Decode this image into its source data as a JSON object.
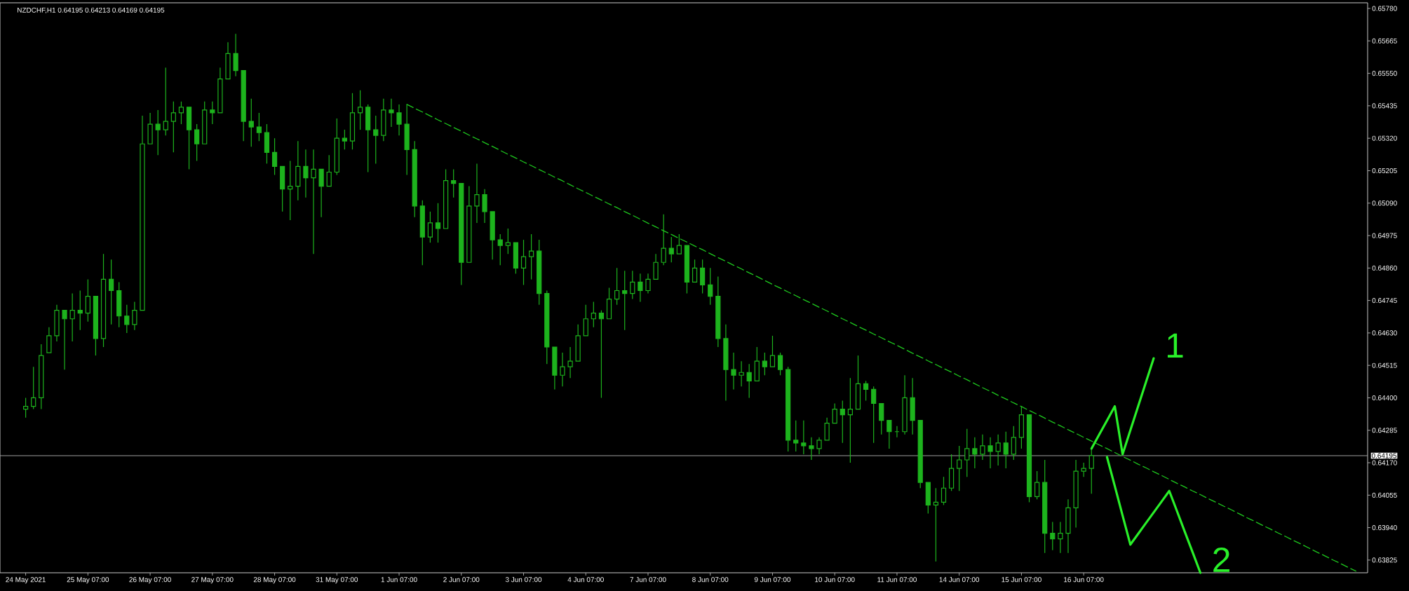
{
  "chart_data": {
    "type": "candlestick",
    "title": "NZDCHF,H1 0.64195 0.64213 0.64169 0.64195",
    "categories": [
      "24 May 2021",
      null,
      null,
      null,
      null,
      null,
      null,
      null,
      "25 May 07:00",
      null,
      null,
      null,
      null,
      null,
      null,
      null,
      "26 May 07:00",
      null,
      null,
      null,
      null,
      null,
      null,
      null,
      "27 May 07:00",
      null,
      null,
      null,
      null,
      null,
      null,
      null,
      "28 May 07:00",
      null,
      null,
      null,
      null,
      null,
      null,
      null,
      "31 May 07:00",
      null,
      null,
      null,
      null,
      null,
      null,
      null,
      "1 Jun 07:00",
      null,
      null,
      null,
      null,
      null,
      null,
      null,
      "2 Jun 07:00",
      null,
      null,
      null,
      null,
      null,
      null,
      null,
      "3 Jun 07:00",
      null,
      null,
      null,
      null,
      null,
      null,
      null,
      "4 Jun 07:00",
      null,
      null,
      null,
      null,
      null,
      null,
      null,
      "7 Jun 07:00",
      null,
      null,
      null,
      null,
      null,
      null,
      null,
      "8 Jun 07:00",
      null,
      null,
      null,
      null,
      null,
      null,
      null,
      "9 Jun 07:00",
      null,
      null,
      null,
      null,
      null,
      null,
      null,
      "10 Jun 07:00",
      null,
      null,
      null,
      null,
      null,
      null,
      null,
      "11 Jun 07:00",
      null,
      null,
      null,
      null,
      null,
      null,
      null,
      "14 Jun 07:00",
      null,
      null,
      null,
      null,
      null,
      null,
      null,
      "15 Jun 07:00",
      null,
      null,
      null,
      null,
      null,
      null,
      null,
      "16 Jun 07:00",
      null,
      null,
      null,
      null,
      null,
      null,
      null,
      null,
      null,
      null,
      null,
      null,
      null,
      null,
      null,
      null,
      null,
      null,
      null,
      null,
      null,
      null,
      null,
      null,
      null,
      null,
      null,
      null,
      null,
      null,
      null,
      null,
      null,
      null,
      null,
      null
    ],
    "ylim": [
      0.6378,
      0.658
    ],
    "yticks": [
      {
        "value": 0.6578,
        "label": "0.65780"
      },
      {
        "value": 0.65665,
        "label": "0.65665"
      },
      {
        "value": 0.6555,
        "label": "0.65550"
      },
      {
        "value": 0.65435,
        "label": "0.65435"
      },
      {
        "value": 0.6532,
        "label": "0.65320"
      },
      {
        "value": 0.65205,
        "label": "0.65205"
      },
      {
        "value": 0.6509,
        "label": "0.65090"
      },
      {
        "value": 0.64975,
        "label": "0.64975"
      },
      {
        "value": 0.6486,
        "label": "0.64860"
      },
      {
        "value": 0.64745,
        "label": "0.64745"
      },
      {
        "value": 0.6463,
        "label": "0.64630"
      },
      {
        "value": 0.64515,
        "label": "0.64515"
      },
      {
        "value": 0.644,
        "label": "0.64400"
      },
      {
        "value": 0.64285,
        "label": "0.64285"
      },
      {
        "value": 0.6417,
        "label": "0.64170"
      },
      {
        "value": 0.64055,
        "label": "0.64055"
      },
      {
        "value": 0.6394,
        "label": "0.63940"
      },
      {
        "value": 0.63825,
        "label": "0.63825"
      }
    ],
    "series": [
      {
        "color": "#1db31d",
        "ohlc": [
          [
            0.6436,
            0.644,
            0.6433,
            0.6437
          ],
          [
            0.6437,
            0.6451,
            0.6436,
            0.644
          ],
          [
            0.644,
            0.6459,
            0.6436,
            0.6455
          ],
          [
            0.6456,
            0.6465,
            0.6456,
            0.6462
          ],
          [
            0.6462,
            0.6473,
            0.646,
            0.6471
          ],
          [
            0.6471,
            0.6471,
            0.645,
            0.6468
          ],
          [
            0.6468,
            0.6477,
            0.646,
            0.6471
          ],
          [
            0.6471,
            0.6478,
            0.6464,
            0.647
          ],
          [
            0.647,
            0.6482,
            0.6467,
            0.6476
          ],
          [
            0.6476,
            0.6476,
            0.6455,
            0.6461
          ],
          [
            0.6461,
            0.6491,
            0.6458,
            0.6482
          ],
          [
            0.6482,
            0.6489,
            0.6466,
            0.6478
          ],
          [
            0.6478,
            0.6481,
            0.6465,
            0.6469
          ],
          [
            0.6469,
            0.6473,
            0.6463,
            0.6466
          ],
          [
            0.6466,
            0.6474,
            0.6464,
            0.6471
          ],
          [
            0.6471,
            0.654,
            0.6471,
            0.653
          ],
          [
            0.653,
            0.6541,
            0.653,
            0.6537
          ],
          [
            0.6537,
            0.6542,
            0.6526,
            0.6535
          ],
          [
            0.6535,
            0.6557,
            0.6533,
            0.6538
          ],
          [
            0.6538,
            0.6545,
            0.6527,
            0.6541
          ],
          [
            0.6541,
            0.6545,
            0.6537,
            0.6543
          ],
          [
            0.6543,
            0.6543,
            0.6521,
            0.6535
          ],
          [
            0.6535,
            0.6537,
            0.6524,
            0.653
          ],
          [
            0.653,
            0.6545,
            0.653,
            0.6542
          ],
          [
            0.6542,
            0.6545,
            0.6537,
            0.6541
          ],
          [
            0.6541,
            0.6557,
            0.6541,
            0.6553
          ],
          [
            0.6553,
            0.6566,
            0.6553,
            0.6562
          ],
          [
            0.6562,
            0.6569,
            0.6554,
            0.6556
          ],
          [
            0.6556,
            0.6556,
            0.6531,
            0.6538
          ],
          [
            0.6538,
            0.6546,
            0.6529,
            0.6536
          ],
          [
            0.6536,
            0.6541,
            0.6531,
            0.6534
          ],
          [
            0.6534,
            0.6537,
            0.6523,
            0.6527
          ],
          [
            0.6527,
            0.6532,
            0.6519,
            0.6522
          ],
          [
            0.6522,
            0.6522,
            0.6506,
            0.6514
          ],
          [
            0.6514,
            0.6524,
            0.6503,
            0.6515
          ],
          [
            0.6515,
            0.6531,
            0.651,
            0.6522
          ],
          [
            0.6522,
            0.6528,
            0.6511,
            0.6518
          ],
          [
            0.6518,
            0.6528,
            0.6491,
            0.6521
          ],
          [
            0.6521,
            0.6521,
            0.6504,
            0.6515
          ],
          [
            0.6515,
            0.6526,
            0.6515,
            0.652
          ],
          [
            0.652,
            0.6539,
            0.6519,
            0.6532
          ],
          [
            0.6532,
            0.6535,
            0.6528,
            0.6531
          ],
          [
            0.6531,
            0.6548,
            0.6528,
            0.6541
          ],
          [
            0.6541,
            0.6549,
            0.6535,
            0.6543
          ],
          [
            0.6543,
            0.6544,
            0.652,
            0.6535
          ],
          [
            0.6535,
            0.654,
            0.6523,
            0.6533
          ],
          [
            0.6533,
            0.6546,
            0.6531,
            0.6542
          ],
          [
            0.6542,
            0.6546,
            0.6536,
            0.6541
          ],
          [
            0.6541,
            0.6544,
            0.6533,
            0.6537
          ],
          [
            0.6537,
            0.6544,
            0.6519,
            0.6528
          ],
          [
            0.6528,
            0.6531,
            0.6504,
            0.6508
          ],
          [
            0.6508,
            0.651,
            0.6487,
            0.6497
          ],
          [
            0.6497,
            0.6506,
            0.6495,
            0.6502
          ],
          [
            0.6502,
            0.6509,
            0.6495,
            0.65
          ],
          [
            0.65,
            0.6521,
            0.65,
            0.6517
          ],
          [
            0.6517,
            0.6521,
            0.6511,
            0.6516
          ],
          [
            0.6516,
            0.6516,
            0.648,
            0.6488
          ],
          [
            0.6488,
            0.6515,
            0.6488,
            0.6508
          ],
          [
            0.6508,
            0.6523,
            0.6502,
            0.6512
          ],
          [
            0.6512,
            0.6514,
            0.6502,
            0.6506
          ],
          [
            0.6506,
            0.6506,
            0.6489,
            0.6496
          ],
          [
            0.6496,
            0.6498,
            0.6487,
            0.6494
          ],
          [
            0.6494,
            0.65,
            0.6491,
            0.6495
          ],
          [
            0.6495,
            0.6495,
            0.6484,
            0.6486
          ],
          [
            0.6486,
            0.6496,
            0.648,
            0.649
          ],
          [
            0.649,
            0.6498,
            0.6482,
            0.6492
          ],
          [
            0.6492,
            0.6496,
            0.6473,
            0.6477
          ],
          [
            0.6477,
            0.6478,
            0.6452,
            0.6458
          ],
          [
            0.6458,
            0.6458,
            0.6443,
            0.6448
          ],
          [
            0.6448,
            0.6456,
            0.6444,
            0.6451
          ],
          [
            0.6451,
            0.6458,
            0.6447,
            0.6453
          ],
          [
            0.6453,
            0.6466,
            0.6453,
            0.6462
          ],
          [
            0.6462,
            0.6473,
            0.6462,
            0.6468
          ],
          [
            0.6468,
            0.6474,
            0.6465,
            0.647
          ],
          [
            0.647,
            0.6471,
            0.644,
            0.6468
          ],
          [
            0.6468,
            0.6479,
            0.6468,
            0.6475
          ],
          [
            0.6475,
            0.6486,
            0.6473,
            0.6478
          ],
          [
            0.6478,
            0.6485,
            0.6464,
            0.6477
          ],
          [
            0.6477,
            0.6485,
            0.6475,
            0.6481
          ],
          [
            0.6481,
            0.6484,
            0.6474,
            0.6478
          ],
          [
            0.6478,
            0.6484,
            0.6477,
            0.6482
          ],
          [
            0.6482,
            0.6491,
            0.6482,
            0.6488
          ],
          [
            0.6488,
            0.6505,
            0.6487,
            0.6493
          ],
          [
            0.6493,
            0.6497,
            0.6488,
            0.6491
          ],
          [
            0.6491,
            0.6498,
            0.6491,
            0.6494
          ],
          [
            0.6494,
            0.6494,
            0.6477,
            0.6481
          ],
          [
            0.6481,
            0.6489,
            0.6481,
            0.6486
          ],
          [
            0.6486,
            0.6489,
            0.6477,
            0.648
          ],
          [
            0.648,
            0.6486,
            0.6473,
            0.6476
          ],
          [
            0.6476,
            0.6483,
            0.6458,
            0.6461
          ],
          [
            0.6461,
            0.6466,
            0.6439,
            0.645
          ],
          [
            0.645,
            0.6456,
            0.6443,
            0.6448
          ],
          [
            0.6448,
            0.6453,
            0.6444,
            0.6449
          ],
          [
            0.6449,
            0.6452,
            0.644,
            0.6446
          ],
          [
            0.6446,
            0.6458,
            0.6446,
            0.6453
          ],
          [
            0.6453,
            0.6456,
            0.6448,
            0.6451
          ],
          [
            0.6451,
            0.6462,
            0.6451,
            0.6455
          ],
          [
            0.6455,
            0.6456,
            0.6448,
            0.645
          ],
          [
            0.645,
            0.6451,
            0.6421,
            0.6425
          ],
          [
            0.6425,
            0.6432,
            0.6421,
            0.6424
          ],
          [
            0.6424,
            0.6432,
            0.642,
            0.6423
          ],
          [
            0.6423,
            0.6426,
            0.6418,
            0.6422
          ],
          [
            0.6422,
            0.6426,
            0.642,
            0.6425
          ],
          [
            0.6425,
            0.6433,
            0.6425,
            0.6431
          ],
          [
            0.6431,
            0.6438,
            0.6431,
            0.6436
          ],
          [
            0.6436,
            0.6439,
            0.6424,
            0.6434
          ],
          [
            0.6434,
            0.6447,
            0.6417,
            0.6436
          ],
          [
            0.6436,
            0.6455,
            0.6436,
            0.6445
          ],
          [
            0.6445,
            0.6446,
            0.6439,
            0.6443
          ],
          [
            0.6443,
            0.6444,
            0.6424,
            0.6438
          ],
          [
            0.6438,
            0.6438,
            0.6427,
            0.6432
          ],
          [
            0.6432,
            0.6432,
            0.6422,
            0.6428
          ],
          [
            0.6428,
            0.643,
            0.6426,
            0.6428
          ],
          [
            0.6428,
            0.6448,
            0.6427,
            0.644
          ],
          [
            0.644,
            0.6447,
            0.6427,
            0.6432
          ],
          [
            0.6432,
            0.6432,
            0.6408,
            0.641
          ],
          [
            0.641,
            0.641,
            0.6399,
            0.6402
          ],
          [
            0.6402,
            0.6408,
            0.6382,
            0.6403
          ],
          [
            0.6403,
            0.6412,
            0.6402,
            0.6408
          ],
          [
            0.6408,
            0.642,
            0.6407,
            0.6415
          ],
          [
            0.6415,
            0.6423,
            0.6407,
            0.6418
          ],
          [
            0.6418,
            0.6429,
            0.6412,
            0.6422
          ],
          [
            0.6422,
            0.6426,
            0.6415,
            0.642
          ],
          [
            0.642,
            0.6427,
            0.6418,
            0.6423
          ],
          [
            0.6423,
            0.6426,
            0.6415,
            0.6421
          ],
          [
            0.6421,
            0.6427,
            0.6416,
            0.6424
          ],
          [
            0.6424,
            0.6428,
            0.6415,
            0.642
          ],
          [
            0.642,
            0.643,
            0.6418,
            0.6426
          ],
          [
            0.6426,
            0.6437,
            0.6422,
            0.6434
          ],
          [
            0.6434,
            0.6434,
            0.6403,
            0.6405
          ],
          [
            0.6405,
            0.6414,
            0.6404,
            0.641
          ],
          [
            0.641,
            0.6418,
            0.6385,
            0.6392
          ],
          [
            0.6392,
            0.6396,
            0.6386,
            0.639
          ],
          [
            0.639,
            0.6396,
            0.6385,
            0.6392
          ],
          [
            0.6392,
            0.6404,
            0.6385,
            0.6401
          ],
          [
            0.6401,
            0.6418,
            0.6394,
            0.6414
          ],
          [
            0.6414,
            0.6417,
            0.6412,
            0.6415
          ],
          [
            0.6415,
            0.6422,
            0.6406,
            0.64195
          ],
          null,
          null,
          null,
          null,
          null,
          null,
          null,
          null,
          null,
          null,
          null,
          null,
          null,
          null,
          null,
          null,
          null,
          null,
          null,
          null,
          null,
          null,
          null,
          null,
          null,
          null,
          null,
          null,
          null,
          null,
          null,
          null,
          null,
          null,
          null
        ]
      },
      {
        "type": "line",
        "color": "#1ec81e",
        "line_style": "dashed",
        "values": [
          null,
          null,
          null,
          null,
          null,
          null,
          null,
          null,
          null,
          null,
          null,
          null,
          null,
          null,
          null,
          null,
          null,
          null,
          null,
          null,
          null,
          null,
          null,
          null,
          null,
          null,
          null,
          null,
          null,
          null,
          null,
          null,
          null,
          null,
          null,
          null,
          null,
          null,
          null,
          null,
          null,
          null,
          null,
          null,
          null,
          null,
          null,
          null,
          null,
          0.6544,
          0.65426,
          0.65413,
          0.65399,
          0.65385,
          0.65372,
          0.65358,
          0.65345,
          0.65331,
          0.65318,
          0.65304,
          0.65291,
          0.65277,
          0.65263,
          0.6525,
          0.65236,
          0.65223,
          0.65209,
          0.65196,
          0.65182,
          0.65169,
          0.65155,
          0.65141,
          0.65128,
          0.65114,
          0.65101,
          0.65087,
          0.65074,
          0.6506,
          0.65047,
          0.65033,
          0.65019,
          0.65006,
          0.64992,
          0.64979,
          0.64965,
          0.64952,
          0.64938,
          0.64925,
          0.64911,
          0.64897,
          0.64884,
          0.6487,
          0.64857,
          0.64843,
          0.6483,
          0.64816,
          0.64802,
          0.64789,
          0.64775,
          0.64762,
          0.64748,
          0.64735,
          0.64721,
          0.64708,
          0.64694,
          0.6468,
          0.64667,
          0.64653,
          0.6464,
          0.64626,
          0.64613,
          0.64599,
          0.64586,
          0.64572,
          0.64558,
          0.64545,
          0.64531,
          0.64518,
          0.64504,
          0.64491,
          0.64477,
          0.64464,
          0.6445,
          0.64436,
          0.64423,
          0.64409,
          0.64396,
          0.64382,
          0.64369,
          0.64355,
          0.64342,
          0.64328,
          0.64314,
          0.64301,
          0.64287,
          0.64274,
          0.6426,
          0.64247,
          0.64233,
          0.6422,
          0.64206,
          0.64192,
          0.64179,
          0.64165,
          0.64152,
          0.64138,
          0.64125,
          0.64111,
          0.64097,
          0.64084,
          0.6407,
          0.64057,
          0.64043,
          0.6403,
          0.64016,
          0.64003,
          0.63989,
          0.63975,
          0.63962,
          0.63948,
          0.63935,
          0.63921,
          0.63908,
          0.63894,
          0.63881,
          0.63867,
          0.63853,
          0.6384,
          0.63826,
          0.63813,
          0.63799,
          0.63786,
          null
        ]
      },
      {
        "type": "line",
        "name": "1",
        "color": "#29f029",
        "line_style": "solid",
        "values": [
          null,
          null,
          null,
          null,
          null,
          null,
          null,
          null,
          null,
          null,
          null,
          null,
          null,
          null,
          null,
          null,
          null,
          null,
          null,
          null,
          null,
          null,
          null,
          null,
          null,
          null,
          null,
          null,
          null,
          null,
          null,
          null,
          null,
          null,
          null,
          null,
          null,
          null,
          null,
          null,
          null,
          null,
          null,
          null,
          null,
          null,
          null,
          null,
          null,
          null,
          null,
          null,
          null,
          null,
          null,
          null,
          null,
          null,
          null,
          null,
          null,
          null,
          null,
          null,
          null,
          null,
          null,
          null,
          null,
          null,
          null,
          null,
          null,
          null,
          null,
          null,
          null,
          null,
          null,
          null,
          null,
          null,
          null,
          null,
          null,
          null,
          null,
          null,
          null,
          null,
          null,
          null,
          null,
          null,
          null,
          null,
          null,
          null,
          null,
          null,
          null,
          null,
          null,
          null,
          null,
          null,
          null,
          null,
          null,
          null,
          null,
          null,
          null,
          null,
          null,
          null,
          null,
          null,
          null,
          null,
          null,
          null,
          null,
          null,
          null,
          null,
          null,
          null,
          null,
          null,
          null,
          null,
          null,
          null,
          null,
          null,
          null,
          0.6422,
          0.6427,
          0.6432,
          0.6437,
          0.642,
          0.64285,
          0.6437,
          0.64455,
          0.6454,
          null,
          null,
          null,
          null,
          null,
          null,
          null,
          null,
          null,
          null,
          null,
          null,
          null,
          null,
          null,
          null,
          null,
          null,
          null,
          null,
          null,
          null,
          null,
          null,
          null,
          null,
          null
        ]
      },
      {
        "type": "line",
        "name": "2",
        "color": "#29f029",
        "line_style": "solid",
        "values": [
          null,
          null,
          null,
          null,
          null,
          null,
          null,
          null,
          null,
          null,
          null,
          null,
          null,
          null,
          null,
          null,
          null,
          null,
          null,
          null,
          null,
          null,
          null,
          null,
          null,
          null,
          null,
          null,
          null,
          null,
          null,
          null,
          null,
          null,
          null,
          null,
          null,
          null,
          null,
          null,
          null,
          null,
          null,
          null,
          null,
          null,
          null,
          null,
          null,
          null,
          null,
          null,
          null,
          null,
          null,
          null,
          null,
          null,
          null,
          null,
          null,
          null,
          null,
          null,
          null,
          null,
          null,
          null,
          null,
          null,
          null,
          null,
          null,
          null,
          null,
          null,
          null,
          null,
          null,
          null,
          null,
          null,
          null,
          null,
          null,
          null,
          null,
          null,
          null,
          null,
          null,
          null,
          null,
          null,
          null,
          null,
          null,
          null,
          null,
          null,
          null,
          null,
          null,
          null,
          null,
          null,
          null,
          null,
          null,
          null,
          null,
          null,
          null,
          null,
          null,
          null,
          null,
          null,
          null,
          null,
          null,
          null,
          null,
          null,
          null,
          null,
          null,
          null,
          null,
          null,
          null,
          null,
          null,
          null,
          null,
          null,
          null,
          null,
          null,
          0.6419,
          0.64087,
          0.63983,
          0.6388,
          0.63918,
          0.63956,
          0.63994,
          0.64032,
          0.6407,
          0.63998,
          0.63925,
          0.63853,
          0.6378,
          null,
          null,
          null,
          null,
          null,
          null,
          null,
          null,
          null,
          null,
          null,
          null,
          null,
          null,
          null,
          null,
          null,
          null,
          null,
          null,
          null
        ]
      }
    ],
    "ref_lines": [
      {
        "axis": "y",
        "value": 0.64195,
        "label": "0.64195",
        "color": "#a0a0a0"
      }
    ]
  }
}
